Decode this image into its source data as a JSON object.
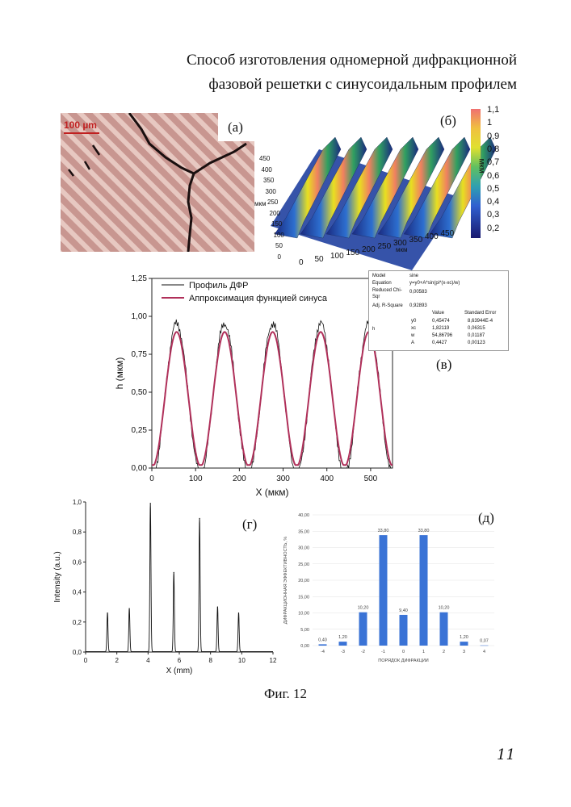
{
  "title_line1": "Способ изготовления одномерной дифракционной",
  "title_line2": "фазовой решетки с синусоидальным профилем",
  "figure_caption": "Фиг. 12",
  "page_number": "11",
  "panel_a": {
    "label": "(а)",
    "scale_text": "100 µm"
  },
  "panel_b": {
    "label": "(б)",
    "colorbar_unit": "мкм",
    "colorbar_ticks": [
      "1,1",
      "1",
      "0,9",
      "0,8",
      "0,7",
      "0,6",
      "0,5",
      "0,4",
      "0,3",
      "0,2"
    ],
    "y_axis_ticks": [
      "450",
      "400",
      "350",
      "300",
      "250",
      "200",
      "150",
      "100",
      "50",
      "0"
    ],
    "y_axis_label": "мкм",
    "x_axis_ticks": [
      "0",
      "50",
      "100",
      "150",
      "200",
      "250",
      "300",
      "350",
      "400",
      "450"
    ],
    "x_axis_label": "мкм"
  },
  "panel_v": {
    "label": "(в)",
    "legend_profile": "Профиль ДФР",
    "legend_fit": "Аппроксимация функцией синуса",
    "fit_table": {
      "model_label": "Model",
      "model_value": "sine",
      "equation_label": "Equation",
      "equation_value": "y=y0+A*sin(pi*(x-xc)/w)",
      "chisqr_label": "Reduced Chi-Sqr",
      "chisqr_value": "0,00583",
      "r2_label": "Adj. R-Square",
      "r2_value": "0,92893",
      "col_value": "Value",
      "col_error": "Standard Error",
      "row_label": "h",
      "rows": [
        {
          "param": "y0",
          "value": "0,45474",
          "error": "8,63944E-4"
        },
        {
          "param": "xc",
          "value": "1,82119",
          "error": "0,06315"
        },
        {
          "param": "w",
          "value": "54,86796",
          "error": "0,01187"
        },
        {
          "param": "A",
          "value": "0,4427",
          "error": "0,00123"
        }
      ]
    }
  },
  "panel_g": {
    "label": "(г)"
  },
  "panel_d": {
    "label": "(д)"
  },
  "chart_data": [
    {
      "id": "v",
      "type": "line",
      "xlabel": "X (мкм)",
      "ylabel": "h (мкм)",
      "xlim": [
        0,
        550
      ],
      "ylim": [
        0,
        1.25
      ],
      "x_ticks": [
        "0",
        "100",
        "200",
        "300",
        "400",
        "500"
      ],
      "y_ticks": [
        "0,00",
        "0,25",
        "0,50",
        "0,75",
        "1,00",
        "1,25"
      ],
      "series": [
        {
          "name": "Профиль ДФР",
          "color": "#111111",
          "model": "measured"
        },
        {
          "name": "Аппроксимация функцией синуса",
          "color": "#b0305a",
          "y0": 0.45474,
          "xc": 1.82119,
          "w": 54.86796,
          "A": 0.4427
        }
      ]
    },
    {
      "id": "g",
      "type": "line",
      "xlabel": "X (mm)",
      "ylabel": "Intensity (a.u.)",
      "xlim": [
        0,
        12
      ],
      "ylim": [
        0,
        1.0
      ],
      "x_ticks": [
        "0",
        "2",
        "4",
        "6",
        "8",
        "10",
        "12"
      ],
      "y_ticks": [
        "0,0",
        "0,2",
        "0,4",
        "0,6",
        "0,8",
        "1,0"
      ],
      "peaks": [
        {
          "x": 1.4,
          "y": 0.26
        },
        {
          "x": 2.8,
          "y": 0.29
        },
        {
          "x": 4.15,
          "y": 0.99
        },
        {
          "x": 5.65,
          "y": 0.53
        },
        {
          "x": 7.3,
          "y": 0.89
        },
        {
          "x": 8.45,
          "y": 0.3
        },
        {
          "x": 9.8,
          "y": 0.26
        }
      ]
    },
    {
      "id": "d",
      "type": "bar",
      "xlabel": "ПОРЯДОК ДИФРАКЦИИ",
      "ylabel": "ДИФРАКЦИОННАЯ ЭФФЕКТИВНОСТЬ, %",
      "ylim": [
        0,
        40
      ],
      "y_ticks": [
        "0,00",
        "5,00",
        "10,00",
        "15,00",
        "20,00",
        "25,00",
        "30,00",
        "35,00",
        "40,00"
      ],
      "categories": [
        "-4",
        "-3",
        "-2",
        "-1",
        "0",
        "1",
        "2",
        "3",
        "4"
      ],
      "values": [
        0.4,
        1.2,
        10.2,
        33.8,
        9.4,
        33.8,
        10.2,
        1.2,
        0.07
      ],
      "value_labels": [
        "0,40",
        "1,20",
        "10,20",
        "33,80",
        "9,40",
        "33,80",
        "10,20",
        "1,20",
        "0,07"
      ],
      "color": "#3a73d6"
    }
  ]
}
